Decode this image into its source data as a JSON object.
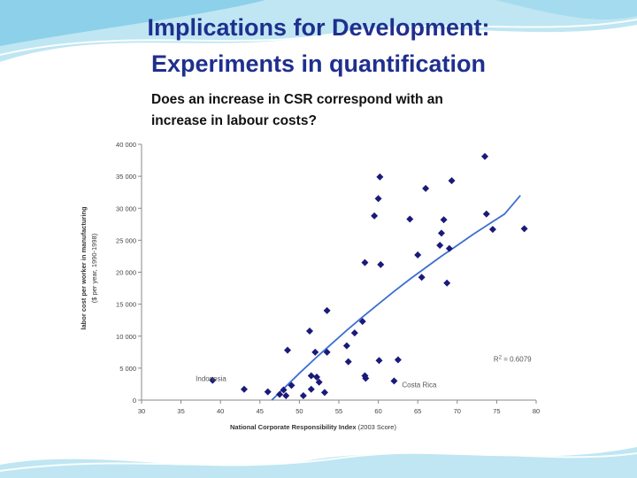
{
  "slide": {
    "title_line_1": "Implications for Development:",
    "title_line_2": "Experiments in quantification",
    "question_line_1": "Does an increase in CSR correspond with an",
    "question_line_2": "increase in labour costs?"
  },
  "colors": {
    "title": "#1f2f8f",
    "marker": "#1a1a7a",
    "trendline": "#3b6fd0",
    "wave_light": "#bfe6f2",
    "wave_mid": "#7fcbe6"
  },
  "chart_data": {
    "type": "scatter",
    "xlabel_bold": "National Corporate Responsibility Index",
    "xlabel_rest": " (2003 Score)",
    "ylabel_line_1": "labor cost per worker in manufacturing",
    "ylabel_line_2": "($ per year, 1990-1998)",
    "xlim": [
      30,
      80
    ],
    "ylim": [
      0,
      40000
    ],
    "x_ticks": [
      30,
      35,
      40,
      45,
      50,
      55,
      60,
      65,
      70,
      75,
      80
    ],
    "y_ticks": [
      0,
      5000,
      10000,
      15000,
      20000,
      25000,
      30000,
      35000,
      40000
    ],
    "y_tick_labels": [
      "0",
      "5 000",
      "10 000",
      "15 000",
      "20 000",
      "25 000",
      "30 000",
      "35 000",
      "40 000"
    ],
    "legend": "none",
    "grid": false,
    "annotations": [
      {
        "text": "Indonesia",
        "x": 38.8,
        "y": 3000
      },
      {
        "text": "Costa Rica",
        "x": 63,
        "y": 2000
      },
      {
        "text_main": "R",
        "text_sup": "2",
        "text_rest": " = 0.6079",
        "x": 77,
        "y": 6000
      }
    ],
    "trendline": {
      "type": "logarithmic",
      "x": [
        46.5,
        48,
        50,
        52,
        54,
        56,
        58,
        60,
        62,
        64,
        66,
        68,
        70,
        72,
        74,
        76,
        78
      ],
      "y": [
        0,
        1800,
        4200,
        6500,
        8700,
        10900,
        13000,
        15000,
        17000,
        18900,
        20700,
        22500,
        24200,
        25900,
        27500,
        29100,
        32000
      ]
    },
    "points": [
      {
        "x": 39,
        "y": 3100
      },
      {
        "x": 43,
        "y": 1700
      },
      {
        "x": 46,
        "y": 1300
      },
      {
        "x": 47.5,
        "y": 900
      },
      {
        "x": 48,
        "y": 1600
      },
      {
        "x": 48.3,
        "y": 700
      },
      {
        "x": 48.5,
        "y": 7800
      },
      {
        "x": 49,
        "y": 2300
      },
      {
        "x": 50.5,
        "y": 700
      },
      {
        "x": 51.3,
        "y": 10800
      },
      {
        "x": 51.5,
        "y": 3800
      },
      {
        "x": 51.5,
        "y": 1700
      },
      {
        "x": 52,
        "y": 7500
      },
      {
        "x": 52.2,
        "y": 3600
      },
      {
        "x": 52.5,
        "y": 2800
      },
      {
        "x": 53.2,
        "y": 1200
      },
      {
        "x": 53.5,
        "y": 7500
      },
      {
        "x": 53.5,
        "y": 14000
      },
      {
        "x": 56,
        "y": 8500
      },
      {
        "x": 56.2,
        "y": 6000
      },
      {
        "x": 57,
        "y": 10500
      },
      {
        "x": 58,
        "y": 12300
      },
      {
        "x": 58.3,
        "y": 21500
      },
      {
        "x": 58.3,
        "y": 3800
      },
      {
        "x": 58.4,
        "y": 3400
      },
      {
        "x": 59.5,
        "y": 28800
      },
      {
        "x": 60,
        "y": 31500
      },
      {
        "x": 60.2,
        "y": 34900
      },
      {
        "x": 60.3,
        "y": 21200
      },
      {
        "x": 60.1,
        "y": 6200
      },
      {
        "x": 62,
        "y": 3000
      },
      {
        "x": 62.5,
        "y": 6300
      },
      {
        "x": 64,
        "y": 28300
      },
      {
        "x": 65,
        "y": 22700
      },
      {
        "x": 65.5,
        "y": 19200
      },
      {
        "x": 66,
        "y": 33100
      },
      {
        "x": 67.8,
        "y": 24200
      },
      {
        "x": 68,
        "y": 26100
      },
      {
        "x": 68.3,
        "y": 28200
      },
      {
        "x": 68.7,
        "y": 18300
      },
      {
        "x": 69,
        "y": 23700
      },
      {
        "x": 69.3,
        "y": 34300
      },
      {
        "x": 73.5,
        "y": 38100
      },
      {
        "x": 73.7,
        "y": 29100
      },
      {
        "x": 74.5,
        "y": 26700
      },
      {
        "x": 78.5,
        "y": 26800
      }
    ]
  }
}
